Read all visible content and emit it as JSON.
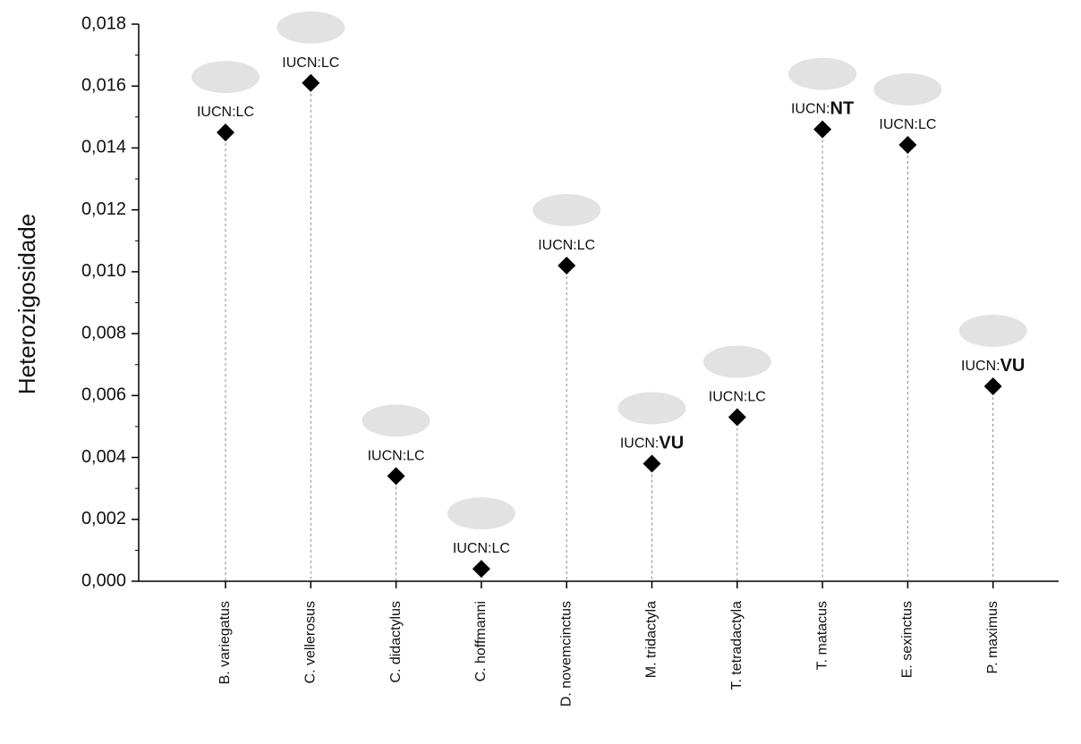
{
  "chart_data": {
    "type": "scatter",
    "y_label": "Heterozigosidade",
    "categories": [
      "B. variegatus",
      "C. vellerosus",
      "C. didactylus",
      "C. hoffmanni",
      "D. novemcinctus",
      "M. tridactyla",
      "T. tetradactyla",
      "T. matacus",
      "E. sexinctus",
      "P. maximus"
    ],
    "values": [
      0.0145,
      0.0161,
      0.0034,
      0.0004,
      0.0102,
      0.0038,
      0.0053,
      0.0146,
      0.0141,
      0.0063
    ],
    "annotations": [
      {
        "prefix": "IUCN:",
        "status": "LC",
        "bold": false
      },
      {
        "prefix": "IUCN:",
        "status": "LC",
        "bold": false
      },
      {
        "prefix": "IUCN:",
        "status": "LC",
        "bold": false
      },
      {
        "prefix": "IUCN:",
        "status": "LC",
        "bold": false
      },
      {
        "prefix": "IUCN:",
        "status": "LC",
        "bold": false
      },
      {
        "prefix": "IUCN:",
        "status": "VU",
        "bold": true
      },
      {
        "prefix": "IUCN:",
        "status": "LC",
        "bold": false
      },
      {
        "prefix": "IUCN:",
        "status": "NT",
        "bold": true
      },
      {
        "prefix": "IUCN:",
        "status": "LC",
        "bold": false
      },
      {
        "prefix": "IUCN:",
        "status": "VU",
        "bold": true
      }
    ],
    "color": "#000000",
    "marker": "diamond",
    "ylim": [
      0,
      0.018
    ],
    "yticks": [
      {
        "value": 0,
        "label": "0,000"
      },
      {
        "value": 0.002,
        "label": "0,002"
      },
      {
        "value": 0.004,
        "label": "0,004"
      },
      {
        "value": 0.006,
        "label": "0,006"
      },
      {
        "value": 0.008,
        "label": "0,008"
      },
      {
        "value": 0.01,
        "label": "0,010"
      },
      {
        "value": 0.012,
        "label": "0,012"
      },
      {
        "value": 0.014,
        "label": "0,014"
      },
      {
        "value": 0.016,
        "label": "0,016"
      },
      {
        "value": 0.018,
        "label": "0,018"
      }
    ],
    "drop_lines": true
  }
}
